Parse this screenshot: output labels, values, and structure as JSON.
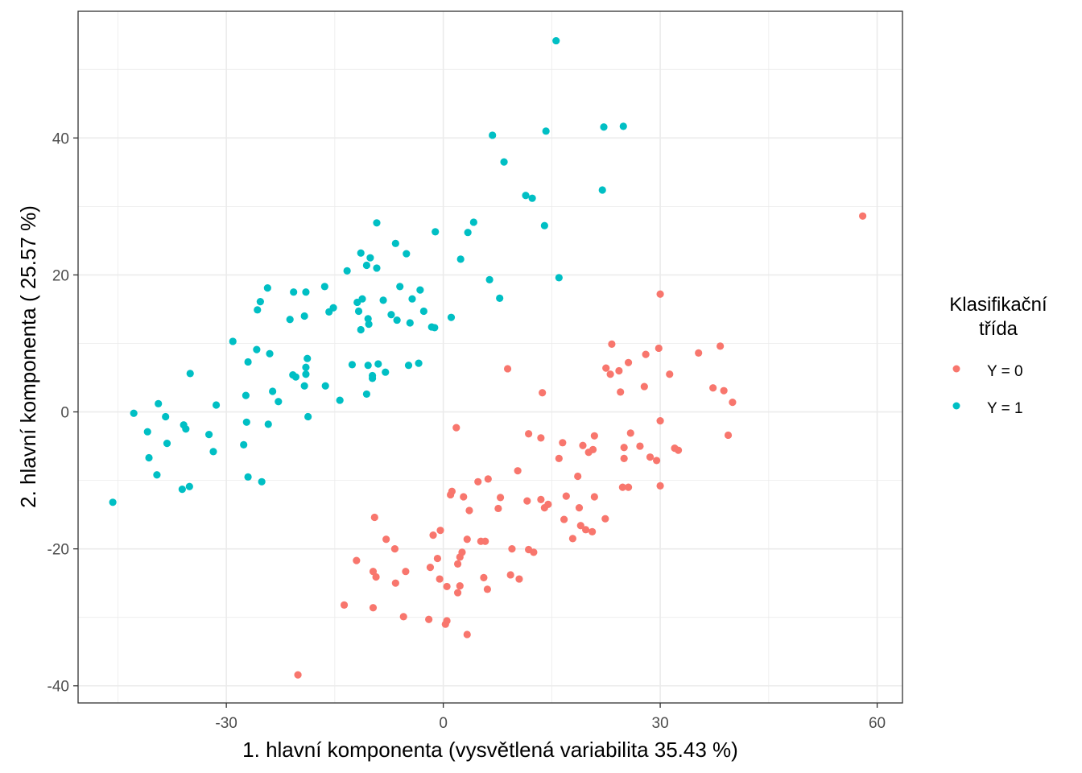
{
  "chart_data": {
    "type": "scatter",
    "xlabel": "1. hlavní komponenta (vysvětlená variabilita 35.43 %)",
    "ylabel": "2. hlavní komponenta ( 25.57 %)",
    "xlim": [
      -50.5,
      63.5
    ],
    "ylim": [
      -42.5,
      58.5
    ],
    "x_ticks": [
      -30,
      0,
      30,
      60
    ],
    "y_ticks": [
      -40,
      -20,
      0,
      20,
      40
    ],
    "x_tick_labels": [
      "-30",
      "0",
      "30",
      "60"
    ],
    "y_tick_labels": [
      "-40",
      "-20",
      "0",
      "20",
      "40"
    ],
    "grid": true,
    "legend": {
      "title_line1": "Klasifikační",
      "title_line2": "třída",
      "position": "right"
    },
    "series": [
      {
        "name": "Y = 0",
        "color": "#F8766D",
        "points": [
          [
            58.0,
            28.6
          ],
          [
            30.0,
            17.2
          ],
          [
            23.3,
            9.9
          ],
          [
            29.8,
            9.3
          ],
          [
            38.3,
            9.6
          ],
          [
            35.3,
            8.6
          ],
          [
            28.0,
            8.4
          ],
          [
            22.5,
            6.4
          ],
          [
            24.3,
            6.0
          ],
          [
            25.6,
            7.2
          ],
          [
            23.1,
            5.5
          ],
          [
            31.3,
            5.5
          ],
          [
            8.9,
            6.3
          ],
          [
            27.8,
            3.7
          ],
          [
            37.3,
            3.5
          ],
          [
            38.8,
            3.1
          ],
          [
            24.5,
            2.9
          ],
          [
            13.7,
            2.8
          ],
          [
            40.0,
            1.4
          ],
          [
            1.8,
            -2.3
          ],
          [
            11.8,
            -3.2
          ],
          [
            13.5,
            -3.8
          ],
          [
            16.5,
            -4.5
          ],
          [
            25.9,
            -3.1
          ],
          [
            30.0,
            -1.3
          ],
          [
            20.9,
            -3.5
          ],
          [
            39.4,
            -3.4
          ],
          [
            19.3,
            -4.9
          ],
          [
            20.1,
            -5.9
          ],
          [
            20.7,
            -5.5
          ],
          [
            25.0,
            -5.2
          ],
          [
            27.2,
            -5.0
          ],
          [
            32.0,
            -5.3
          ],
          [
            32.5,
            -5.6
          ],
          [
            16.0,
            -6.8
          ],
          [
            25.0,
            -6.8
          ],
          [
            28.6,
            -6.6
          ],
          [
            29.5,
            -7.1
          ],
          [
            10.3,
            -8.6
          ],
          [
            18.6,
            -9.4
          ],
          [
            6.2,
            -9.8
          ],
          [
            4.8,
            -10.2
          ],
          [
            24.8,
            -11.0
          ],
          [
            25.6,
            -11.0
          ],
          [
            30.0,
            -10.8
          ],
          [
            1.2,
            -11.6
          ],
          [
            1.0,
            -12.1
          ],
          [
            2.8,
            -12.4
          ],
          [
            7.9,
            -12.5
          ],
          [
            13.5,
            -12.8
          ],
          [
            14.5,
            -13.5
          ],
          [
            11.6,
            -13.0
          ],
          [
            17.0,
            -12.3
          ],
          [
            20.9,
            -12.4
          ],
          [
            14.0,
            -14.0
          ],
          [
            7.6,
            -14.1
          ],
          [
            3.6,
            -14.4
          ],
          [
            18.8,
            -14.0
          ],
          [
            16.7,
            -15.7
          ],
          [
            22.4,
            -15.6
          ],
          [
            -9.5,
            -15.4
          ],
          [
            19.0,
            -16.6
          ],
          [
            19.7,
            -17.2
          ],
          [
            20.6,
            -17.5
          ],
          [
            -0.4,
            -17.3
          ],
          [
            -1.4,
            -18.0
          ],
          [
            17.9,
            -18.5
          ],
          [
            -7.9,
            -18.6
          ],
          [
            3.3,
            -18.6
          ],
          [
            5.2,
            -18.9
          ],
          [
            5.8,
            -18.9
          ],
          [
            -6.7,
            -20.0
          ],
          [
            9.5,
            -20.0
          ],
          [
            11.8,
            -20.1
          ],
          [
            12.5,
            -20.5
          ],
          [
            2.6,
            -20.5
          ],
          [
            2.3,
            -21.2
          ],
          [
            -12.0,
            -21.7
          ],
          [
            -0.8,
            -21.4
          ],
          [
            2.0,
            -22.2
          ],
          [
            -9.7,
            -23.3
          ],
          [
            -1.8,
            -22.7
          ],
          [
            -5.2,
            -23.3
          ],
          [
            9.3,
            -23.8
          ],
          [
            10.5,
            -24.4
          ],
          [
            -9.3,
            -24.1
          ],
          [
            5.6,
            -24.2
          ],
          [
            -0.5,
            -24.4
          ],
          [
            -6.6,
            -25.0
          ],
          [
            2.3,
            -25.4
          ],
          [
            0.5,
            -25.5
          ],
          [
            6.1,
            -25.9
          ],
          [
            2.0,
            -26.4
          ],
          [
            -13.7,
            -28.2
          ],
          [
            -9.7,
            -28.6
          ],
          [
            -5.5,
            -29.9
          ],
          [
            -2.0,
            -30.3
          ],
          [
            0.5,
            -30.5
          ],
          [
            0.3,
            -31.0
          ],
          [
            3.3,
            -32.5
          ],
          [
            -20.1,
            -38.4
          ]
        ]
      },
      {
        "name": "Y = 1",
        "color": "#00BFC4",
        "points": [
          [
            15.6,
            54.2
          ],
          [
            6.8,
            40.4
          ],
          [
            14.2,
            41.0
          ],
          [
            22.2,
            41.6
          ],
          [
            24.9,
            41.7
          ],
          [
            8.4,
            36.5
          ],
          [
            22.0,
            32.4
          ],
          [
            11.4,
            31.6
          ],
          [
            12.3,
            31.2
          ],
          [
            -9.2,
            27.6
          ],
          [
            14.0,
            27.2
          ],
          [
            4.2,
            27.7
          ],
          [
            -1.1,
            26.3
          ],
          [
            3.4,
            26.2
          ],
          [
            -6.6,
            24.6
          ],
          [
            -5.1,
            23.1
          ],
          [
            -11.4,
            23.2
          ],
          [
            -10.1,
            22.5
          ],
          [
            2.4,
            22.3
          ],
          [
            -10.6,
            21.4
          ],
          [
            -9.2,
            21.0
          ],
          [
            -13.3,
            20.6
          ],
          [
            6.4,
            19.3
          ],
          [
            16.0,
            19.6
          ],
          [
            -24.3,
            18.1
          ],
          [
            -19.0,
            17.5
          ],
          [
            -20.7,
            17.5
          ],
          [
            -16.4,
            18.3
          ],
          [
            -8.3,
            16.3
          ],
          [
            -6.0,
            18.3
          ],
          [
            -4.3,
            16.5
          ],
          [
            -3.2,
            17.8
          ],
          [
            -11.9,
            16.0
          ],
          [
            -11.2,
            16.5
          ],
          [
            -25.3,
            16.1
          ],
          [
            7.8,
            16.6
          ],
          [
            -15.2,
            15.2
          ],
          [
            -15.8,
            14.6
          ],
          [
            -11.7,
            14.7
          ],
          [
            -25.7,
            14.9
          ],
          [
            -19.2,
            14.0
          ],
          [
            -21.2,
            13.5
          ],
          [
            -10.4,
            13.6
          ],
          [
            -7.2,
            14.2
          ],
          [
            -6.4,
            13.4
          ],
          [
            -2.7,
            14.7
          ],
          [
            -4.6,
            13.0
          ],
          [
            1.1,
            13.8
          ],
          [
            -10.3,
            12.8
          ],
          [
            -11.4,
            12.0
          ],
          [
            -1.2,
            12.3
          ],
          [
            -1.6,
            12.4
          ],
          [
            -29.1,
            10.3
          ],
          [
            -25.8,
            9.1
          ],
          [
            -24.0,
            8.5
          ],
          [
            -27.0,
            7.3
          ],
          [
            -18.8,
            7.8
          ],
          [
            -12.6,
            6.9
          ],
          [
            -9.0,
            7.0
          ],
          [
            -10.4,
            6.8
          ],
          [
            -3.4,
            7.1
          ],
          [
            -4.8,
            6.8
          ],
          [
            -19.0,
            6.5
          ],
          [
            -19.0,
            5.5
          ],
          [
            -20.4,
            5.1
          ],
          [
            -20.8,
            5.4
          ],
          [
            -35.0,
            5.6
          ],
          [
            -9.8,
            5.3
          ],
          [
            -9.8,
            4.9
          ],
          [
            -8.0,
            5.8
          ],
          [
            -19.2,
            3.8
          ],
          [
            -16.3,
            3.8
          ],
          [
            -23.6,
            3.0
          ],
          [
            -27.3,
            2.4
          ],
          [
            -10.6,
            2.6
          ],
          [
            -22.8,
            1.5
          ],
          [
            -14.3,
            1.7
          ],
          [
            -31.4,
            1.0
          ],
          [
            -39.4,
            1.2
          ],
          [
            -42.8,
            -0.2
          ],
          [
            -18.7,
            -0.7
          ],
          [
            -38.4,
            -0.7
          ],
          [
            -27.2,
            -1.5
          ],
          [
            -24.2,
            -1.8
          ],
          [
            -35.9,
            -1.9
          ],
          [
            -35.6,
            -2.5
          ],
          [
            -40.9,
            -2.9
          ],
          [
            -32.4,
            -3.3
          ],
          [
            -38.2,
            -4.6
          ],
          [
            -27.6,
            -4.8
          ],
          [
            -31.8,
            -5.8
          ],
          [
            -40.7,
            -6.7
          ],
          [
            -39.6,
            -9.2
          ],
          [
            -27.0,
            -9.5
          ],
          [
            -25.1,
            -10.2
          ],
          [
            -35.1,
            -10.9
          ],
          [
            -36.1,
            -11.3
          ],
          [
            -45.7,
            -13.2
          ]
        ]
      }
    ]
  }
}
